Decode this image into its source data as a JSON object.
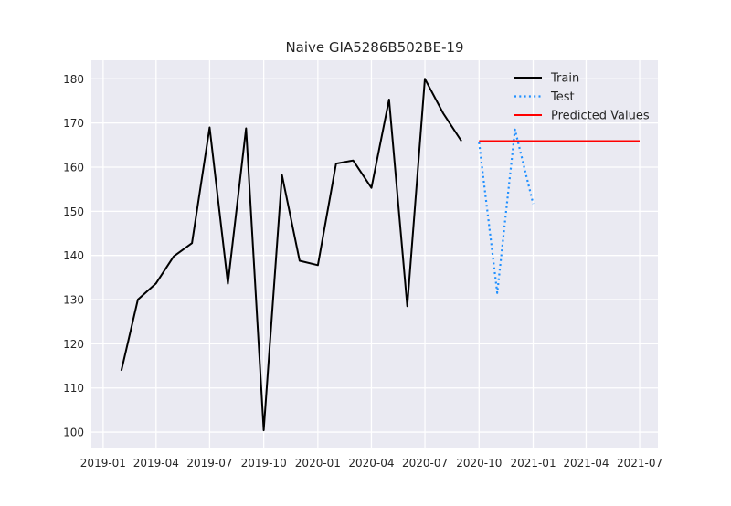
{
  "chart_data": {
    "type": "line",
    "title": "Naive GIA5286B502BE-19",
    "xlabel": "",
    "ylabel": "",
    "x_axis": {
      "type": "date",
      "range": [
        "2018-12-12",
        "2021-08-01"
      ],
      "ticks": [
        {
          "date": "2019-01-01",
          "label": "2019-01"
        },
        {
          "date": "2019-04-01",
          "label": "2019-04"
        },
        {
          "date": "2019-07-01",
          "label": "2019-07"
        },
        {
          "date": "2019-10-01",
          "label": "2019-10"
        },
        {
          "date": "2020-01-01",
          "label": "2020-01"
        },
        {
          "date": "2020-04-01",
          "label": "2020-04"
        },
        {
          "date": "2020-07-01",
          "label": "2020-07"
        },
        {
          "date": "2020-10-01",
          "label": "2020-10"
        },
        {
          "date": "2021-01-01",
          "label": "2021-01"
        },
        {
          "date": "2021-04-01",
          "label": "2021-04"
        },
        {
          "date": "2021-07-01",
          "label": "2021-07"
        }
      ]
    },
    "y_axis": {
      "range": [
        96.5,
        184.2
      ],
      "ticks": [
        100,
        110,
        120,
        130,
        140,
        150,
        160,
        170,
        180
      ]
    },
    "grid": true,
    "legend_position": "top-right",
    "series": [
      {
        "name": "Train",
        "color": "#000000",
        "style": "solid",
        "points": [
          {
            "x": "2019-02-01",
            "y": 113.9
          },
          {
            "x": "2019-03-01",
            "y": 130.0
          },
          {
            "x": "2019-04-01",
            "y": 133.7
          },
          {
            "x": "2019-05-01",
            "y": 139.8
          },
          {
            "x": "2019-06-01",
            "y": 142.8
          },
          {
            "x": "2019-07-01",
            "y": 169.0
          },
          {
            "x": "2019-08-01",
            "y": 133.6
          },
          {
            "x": "2019-09-01",
            "y": 168.8
          },
          {
            "x": "2019-10-01",
            "y": 100.4
          },
          {
            "x": "2019-11-01",
            "y": 158.2
          },
          {
            "x": "2019-12-01",
            "y": 138.8
          },
          {
            "x": "2020-01-01",
            "y": 137.8
          },
          {
            "x": "2020-02-01",
            "y": 160.8
          },
          {
            "x": "2020-03-01",
            "y": 161.5
          },
          {
            "x": "2020-04-01",
            "y": 155.3
          },
          {
            "x": "2020-05-01",
            "y": 175.3
          },
          {
            "x": "2020-06-01",
            "y": 128.5
          },
          {
            "x": "2020-07-01",
            "y": 180.0
          },
          {
            "x": "2020-08-01",
            "y": 172.2
          },
          {
            "x": "2020-09-01",
            "y": 165.9
          }
        ]
      },
      {
        "name": "Test",
        "color": "#1f8fff",
        "style": "dotted",
        "points": [
          {
            "x": "2020-10-01",
            "y": 165.6
          },
          {
            "x": "2020-11-01",
            "y": 131.5
          },
          {
            "x": "2020-12-01",
            "y": 168.5
          },
          {
            "x": "2021-01-01",
            "y": 151.7
          }
        ]
      },
      {
        "name": "Predicted Values",
        "color": "#ff0000",
        "style": "solid",
        "points": [
          {
            "x": "2020-10-01",
            "y": 165.9
          },
          {
            "x": "2021-07-01",
            "y": 165.9
          }
        ]
      }
    ]
  }
}
